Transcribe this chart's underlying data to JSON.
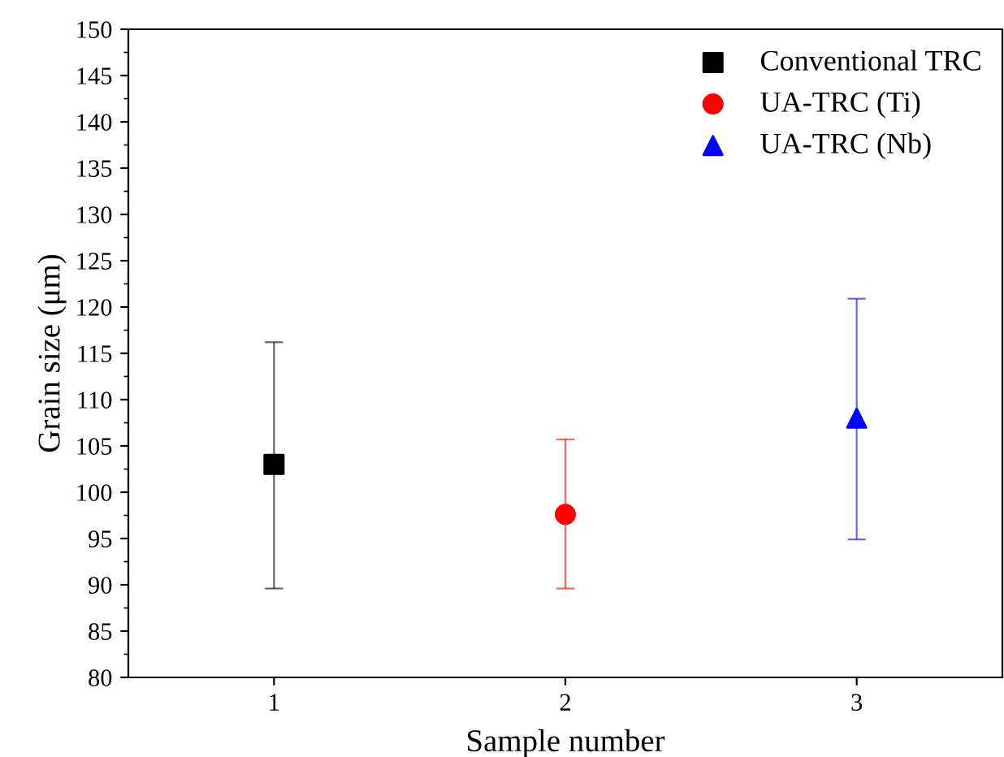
{
  "chart_data": {
    "type": "scatter",
    "xlabel": "Sample number",
    "ylabel": "Grain size (μm)",
    "xlim": [
      0.5,
      3.5
    ],
    "xticks": [
      1,
      2,
      3
    ],
    "ylim": [
      80,
      150
    ],
    "yticks": [
      80,
      85,
      90,
      95,
      100,
      105,
      110,
      115,
      120,
      125,
      130,
      135,
      140,
      145,
      150
    ],
    "grid": false,
    "legend": "top right",
    "series": [
      {
        "name": "Conventional TRC",
        "color": "#000000",
        "marker": "square",
        "x": [
          1
        ],
        "values": [
          103
        ],
        "errors": [
          [
            89.6,
            116.2
          ]
        ]
      },
      {
        "name": "UA-TRC (Ti)",
        "color": "#ff0000",
        "marker": "circle",
        "x": [
          2
        ],
        "values": [
          97.6
        ],
        "errors": [
          [
            89.6,
            105.7
          ]
        ]
      },
      {
        "name": "UA-TRC (Nb)",
        "color": "#0000ff",
        "marker": "triangle",
        "x": [
          3
        ],
        "values": [
          108
        ],
        "errors": [
          [
            94.9,
            120.9
          ]
        ]
      }
    ]
  }
}
